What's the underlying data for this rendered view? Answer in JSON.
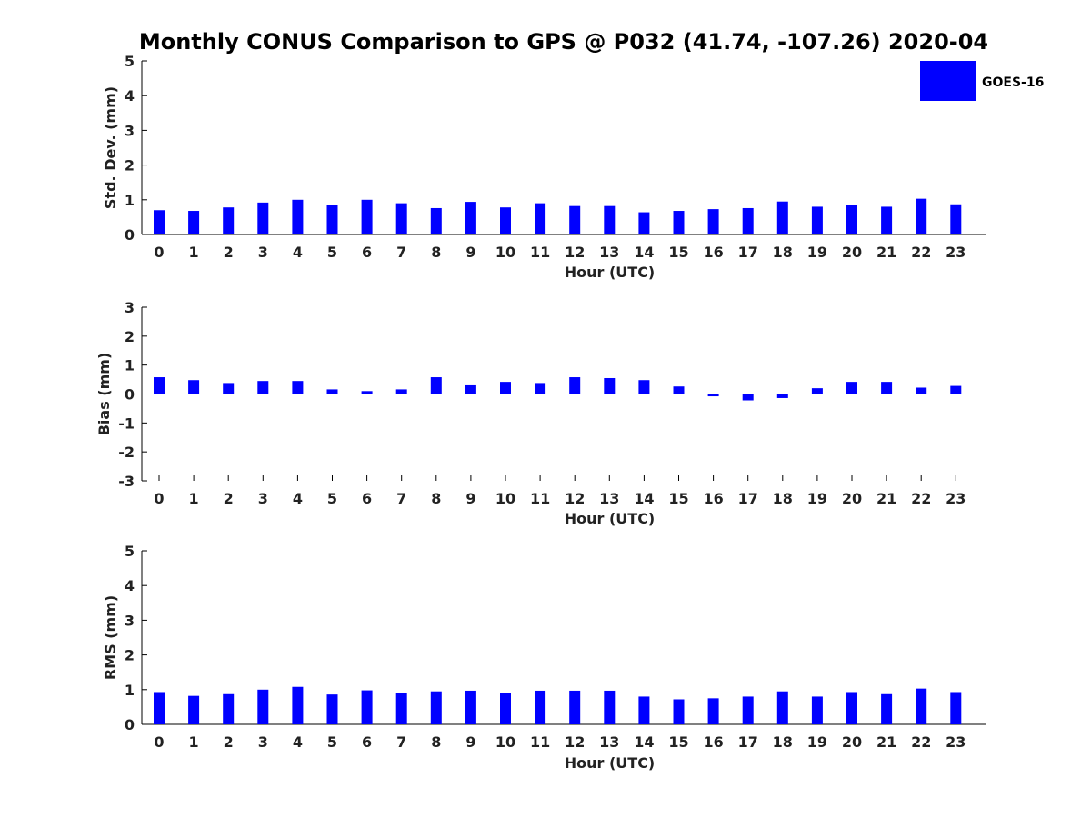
{
  "figure": {
    "title": "Monthly CONUS Comparison to GPS @ P032 (41.74, -107.26) 2020-04",
    "bar_color": "#0000ff"
  },
  "legend": {
    "label": "GOES-16",
    "placement": "top-right"
  },
  "chart_data": [
    {
      "type": "bar",
      "xlabel": "Hour (UTC)",
      "ylabel": "Std. Dev. (mm)",
      "ylim": [
        0,
        5
      ],
      "yticks": [
        0,
        1,
        2,
        3,
        4,
        5
      ],
      "categories": [
        "0",
        "1",
        "2",
        "3",
        "4",
        "5",
        "6",
        "7",
        "8",
        "9",
        "10",
        "11",
        "12",
        "13",
        "14",
        "15",
        "16",
        "17",
        "18",
        "19",
        "20",
        "21",
        "22",
        "23"
      ],
      "series": [
        {
          "name": "GOES-16",
          "values": [
            0.7,
            0.68,
            0.78,
            0.92,
            1.0,
            0.86,
            1.0,
            0.9,
            0.76,
            0.94,
            0.78,
            0.9,
            0.82,
            0.82,
            0.64,
            0.68,
            0.73,
            0.76,
            0.95,
            0.8,
            0.85,
            0.8,
            1.03,
            0.87
          ]
        }
      ]
    },
    {
      "type": "bar",
      "xlabel": "Hour (UTC)",
      "ylabel": "Bias (mm)",
      "ylim": [
        -3,
        3
      ],
      "yticks": [
        -3,
        -2,
        -1,
        0,
        1,
        2,
        3
      ],
      "categories": [
        "0",
        "1",
        "2",
        "3",
        "4",
        "5",
        "6",
        "7",
        "8",
        "9",
        "10",
        "11",
        "12",
        "13",
        "14",
        "15",
        "16",
        "17",
        "18",
        "19",
        "20",
        "21",
        "22",
        "23"
      ],
      "series": [
        {
          "name": "GOES-16",
          "values": [
            0.58,
            0.48,
            0.38,
            0.45,
            0.45,
            0.16,
            0.1,
            0.16,
            0.58,
            0.3,
            0.42,
            0.38,
            0.58,
            0.55,
            0.48,
            0.26,
            -0.08,
            -0.22,
            -0.14,
            0.2,
            0.42,
            0.42,
            0.22,
            0.28
          ]
        }
      ]
    },
    {
      "type": "bar",
      "xlabel": "Hour (UTC)",
      "ylabel": "RMS (mm)",
      "ylim": [
        0,
        5
      ],
      "yticks": [
        0,
        1,
        2,
        3,
        4,
        5
      ],
      "categories": [
        "0",
        "1",
        "2",
        "3",
        "4",
        "5",
        "6",
        "7",
        "8",
        "9",
        "10",
        "11",
        "12",
        "13",
        "14",
        "15",
        "16",
        "17",
        "18",
        "19",
        "20",
        "21",
        "22",
        "23"
      ],
      "series": [
        {
          "name": "GOES-16",
          "values": [
            0.93,
            0.82,
            0.87,
            1.0,
            1.08,
            0.86,
            0.98,
            0.9,
            0.95,
            0.97,
            0.9,
            0.97,
            0.97,
            0.97,
            0.8,
            0.72,
            0.75,
            0.8,
            0.95,
            0.8,
            0.93,
            0.87,
            1.03,
            0.93
          ]
        }
      ]
    }
  ]
}
